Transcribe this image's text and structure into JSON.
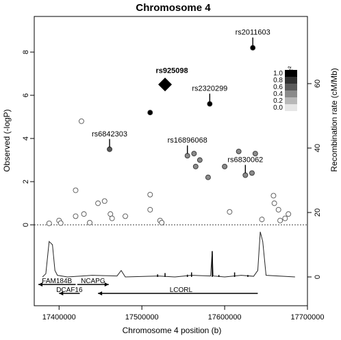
{
  "chart_data": {
    "type": "scatter",
    "title": "Chromosome 4",
    "xlabel": "Chromosome 4 position (b)",
    "ylabel_left": "Observed (-logP)",
    "ylabel_right": "Recombination rate (cM/Mb)",
    "xlim": [
      17370000,
      17700000
    ],
    "x_ticks": [
      17400000,
      17500000,
      17600000,
      17700000
    ],
    "x_tick_labels": [
      "17400000",
      "17500000",
      "17600000",
      "17700000"
    ],
    "y_ticks_left": [
      0,
      2,
      4,
      6,
      8
    ],
    "y_ticks_right": [
      0,
      20,
      40,
      60
    ],
    "legend": {
      "title": "r²",
      "levels": [
        "1.0",
        "0.8",
        "0.6",
        "0.4",
        "0.2",
        "0.0"
      ],
      "colors": [
        "#000000",
        "#303030",
        "#5a5a5a",
        "#8a8a8a",
        "#b8b8b8",
        "#e6e6e6"
      ],
      "placement": "right"
    },
    "lead_snp": {
      "label": "rs925098",
      "x": 17528000,
      "y": 6.5,
      "marker": "diamond"
    },
    "annotations": [
      {
        "label": "rs2011603",
        "x": 17634000,
        "y": 8.2
      },
      {
        "label": "rs2320299",
        "x": 17582000,
        "y": 5.6
      },
      {
        "label": "rs6842303",
        "x": 17461000,
        "y": 3.5
      },
      {
        "label": "rs16896068",
        "x": 17555000,
        "y": 3.2
      },
      {
        "label": "rs6830062",
        "x": 17625000,
        "y": 2.3
      }
    ],
    "points": [
      {
        "x": 17634000,
        "y": 8.2,
        "r2": 1.0
      },
      {
        "x": 17510000,
        "y": 5.2,
        "r2": 1.0
      },
      {
        "x": 17582000,
        "y": 5.6,
        "r2": 1.0
      },
      {
        "x": 17461000,
        "y": 3.5,
        "r2": 0.6
      },
      {
        "x": 17555000,
        "y": 3.2,
        "r2": 0.4
      },
      {
        "x": 17563000,
        "y": 3.3,
        "r2": 0.4
      },
      {
        "x": 17570000,
        "y": 3.0,
        "r2": 0.4
      },
      {
        "x": 17565000,
        "y": 2.7,
        "r2": 0.4
      },
      {
        "x": 17580000,
        "y": 2.2,
        "r2": 0.4
      },
      {
        "x": 17600000,
        "y": 2.7,
        "r2": 0.4
      },
      {
        "x": 17617000,
        "y": 3.4,
        "r2": 0.4
      },
      {
        "x": 17625000,
        "y": 2.3,
        "r2": 0.4
      },
      {
        "x": 17633000,
        "y": 2.4,
        "r2": 0.4
      },
      {
        "x": 17637000,
        "y": 3.3,
        "r2": 0.4
      },
      {
        "x": 17427000,
        "y": 4.8,
        "r2": 0.0
      },
      {
        "x": 17420000,
        "y": 1.6,
        "r2": 0.0
      },
      {
        "x": 17400000,
        "y": 0.2,
        "r2": 0.0
      },
      {
        "x": 17402000,
        "y": 0.08,
        "r2": 0.0
      },
      {
        "x": 17388000,
        "y": 0.07,
        "r2": 0.0
      },
      {
        "x": 17420000,
        "y": 0.4,
        "r2": 0.0
      },
      {
        "x": 17430000,
        "y": 0.5,
        "r2": 0.0
      },
      {
        "x": 17437000,
        "y": 0.1,
        "r2": 0.0
      },
      {
        "x": 17447000,
        "y": 1.0,
        "r2": 0.0
      },
      {
        "x": 17455000,
        "y": 1.1,
        "r2": 0.0
      },
      {
        "x": 17462000,
        "y": 0.5,
        "r2": 0.0
      },
      {
        "x": 17464000,
        "y": 0.3,
        "r2": 0.0
      },
      {
        "x": 17480000,
        "y": 0.4,
        "r2": 0.0
      },
      {
        "x": 17510000,
        "y": 1.4,
        "r2": 0.0
      },
      {
        "x": 17510000,
        "y": 0.7,
        "r2": 0.0
      },
      {
        "x": 17522000,
        "y": 0.2,
        "r2": 0.0
      },
      {
        "x": 17524000,
        "y": 0.1,
        "r2": 0.0
      },
      {
        "x": 17606000,
        "y": 0.6,
        "r2": 0.0
      },
      {
        "x": 17645000,
        "y": 0.25,
        "r2": 0.0
      },
      {
        "x": 17659000,
        "y": 1.35,
        "r2": 0.0
      },
      {
        "x": 17660000,
        "y": 1.0,
        "r2": 0.0
      },
      {
        "x": 17665000,
        "y": 0.7,
        "r2": 0.0
      },
      {
        "x": 17667000,
        "y": 0.2,
        "r2": 0.0
      },
      {
        "x": 17673000,
        "y": 0.3,
        "r2": 0.0
      },
      {
        "x": 17677000,
        "y": 0.5,
        "r2": 0.0
      }
    ],
    "recombination_rate": [
      [
        17380000,
        0
      ],
      [
        17384000,
        1
      ],
      [
        17388000,
        11
      ],
      [
        17392000,
        10
      ],
      [
        17395000,
        2
      ],
      [
        17398000,
        0.5
      ],
      [
        17410000,
        0
      ],
      [
        17440000,
        0.5
      ],
      [
        17470000,
        0.3
      ],
      [
        17475000,
        2
      ],
      [
        17480000,
        0
      ],
      [
        17520000,
        0.3
      ],
      [
        17540000,
        0
      ],
      [
        17560000,
        0.5
      ],
      [
        17583000,
        0.3
      ],
      [
        17585000,
        8
      ],
      [
        17586000,
        0.3
      ],
      [
        17600000,
        0
      ],
      [
        17620000,
        0.5
      ],
      [
        17635000,
        0.2
      ],
      [
        17640000,
        2
      ],
      [
        17643000,
        14
      ],
      [
        17646000,
        11
      ],
      [
        17650000,
        0.5
      ],
      [
        17685000,
        0
      ]
    ],
    "recomb_markers": [
      [
        17519000,
        0.8
      ],
      [
        17528000,
        1.2
      ],
      [
        17555000,
        0.7
      ],
      [
        17560000,
        1.4
      ],
      [
        17585000,
        8
      ],
      [
        17593000,
        0.6
      ],
      [
        17612000,
        1.4
      ],
      [
        17628000,
        0.6
      ]
    ],
    "recomb_ylim": [
      0,
      60
    ],
    "genes": [
      {
        "name": "FAM184B",
        "start": 17375000,
        "end": 17420000,
        "strand": "-",
        "row": 0
      },
      {
        "name": "NCAPG",
        "start": 17422000,
        "end": 17460000,
        "strand": "+",
        "row": 0
      },
      {
        "name": "DCAF16",
        "start": 17400000,
        "end": 17425000,
        "strand": "-",
        "row": 1
      },
      {
        "name": "LCORL",
        "start": 17447000,
        "end": 17640000,
        "strand": "-",
        "row": 1
      }
    ]
  }
}
